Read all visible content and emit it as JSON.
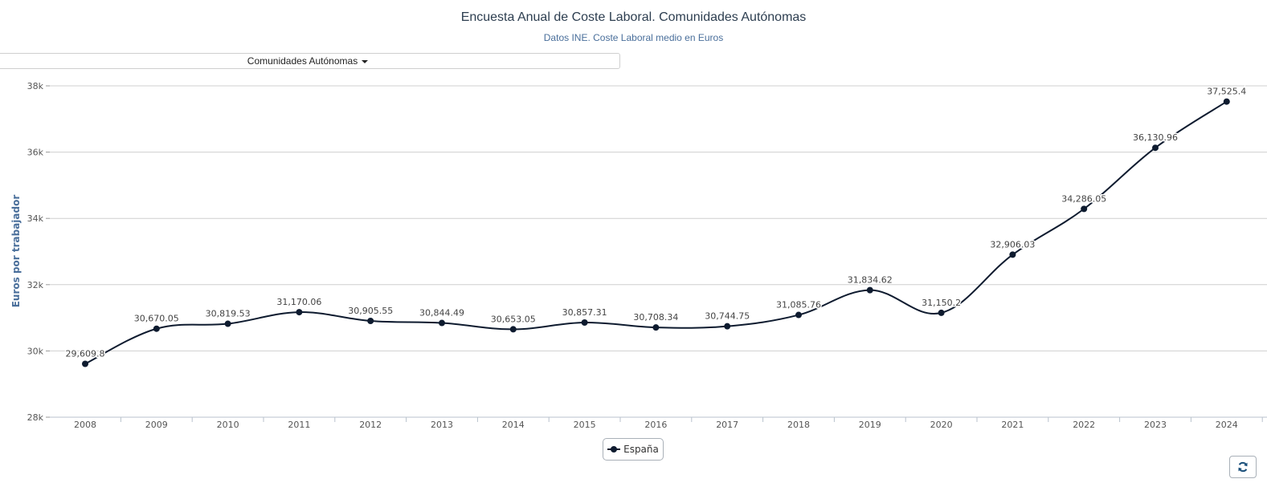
{
  "header": {
    "title": "Encuesta Anual de Coste Laboral. Comunidades Autónomas",
    "subtitle": "Datos INE. Coste Laboral medio en Euros"
  },
  "selector": {
    "label": "Comunidades Autónomas"
  },
  "legend": {
    "label": "España"
  },
  "buttons": {
    "refresh_icon": "refresh-icon"
  },
  "colors": {
    "series": "#0e1b2f",
    "grid": "#cfcfcf",
    "title": "#2d3e50",
    "subtitle": "#4a6f9b",
    "ylabel": "#4a6f9b"
  },
  "chart_data": {
    "type": "line",
    "title": "Encuesta Anual de Coste Laboral. Comunidades Autónomas",
    "subtitle": "Datos INE. Coste Laboral medio en Euros",
    "xlabel": "",
    "ylabel": "Euros por trabajador",
    "categories": [
      "2008",
      "2009",
      "2010",
      "2011",
      "2012",
      "2013",
      "2014",
      "2015",
      "2016",
      "2017",
      "2018",
      "2019",
      "2020",
      "2021",
      "2022",
      "2023",
      "2024"
    ],
    "series": [
      {
        "name": "España",
        "values": [
          29609.8,
          30670.05,
          30819.53,
          31170.06,
          30905.55,
          30844.49,
          30653.05,
          30857.31,
          30708.34,
          30744.75,
          31085.76,
          31834.62,
          31150.2,
          32906.03,
          34286.05,
          36130.96,
          37525.4
        ],
        "data_labels": [
          "29,609.8",
          "30,670.05",
          "30,819.53",
          "31,170.06",
          "30,905.55",
          "30,844.49",
          "30,653.05",
          "30,857.31",
          "30,708.34",
          "30,744.75",
          "31,085.76",
          "31,834.62",
          "31,150.2",
          "32,906.03",
          "34,286.05",
          "36,130.96",
          "37,525.4"
        ]
      }
    ],
    "ylim": [
      28000,
      38000
    ],
    "yticks": [
      28000,
      30000,
      32000,
      34000,
      36000,
      38000
    ],
    "ytick_labels": [
      "28k",
      "30k",
      "32k",
      "34k",
      "36k",
      "38k"
    ],
    "grid": true,
    "legend_position": "bottom-center",
    "smooth": true
  }
}
